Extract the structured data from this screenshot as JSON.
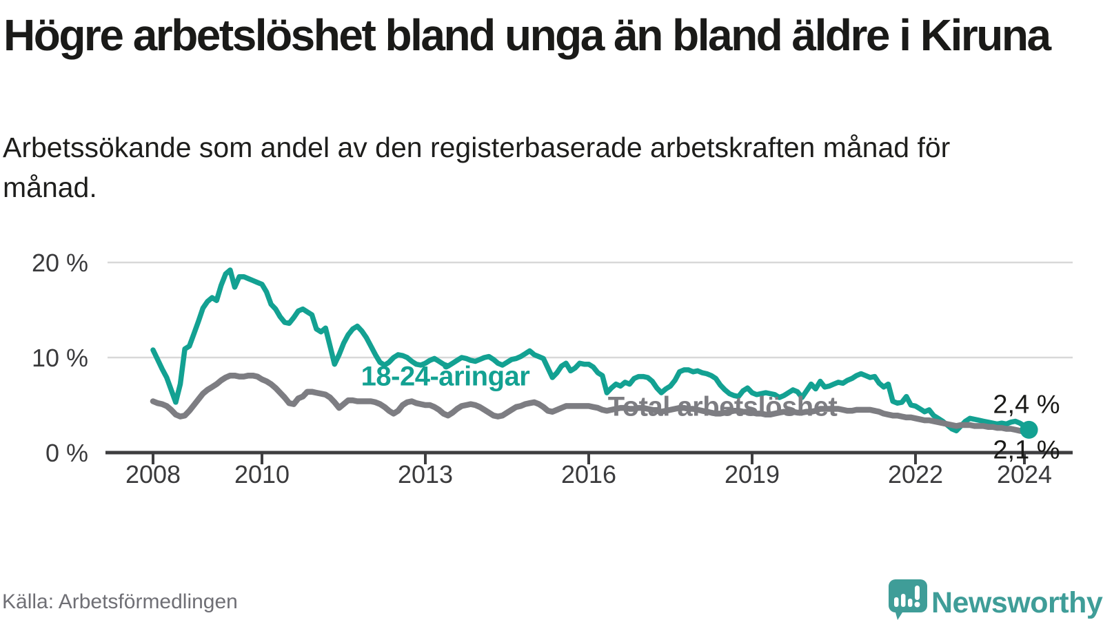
{
  "chart_data": {
    "type": "line",
    "title": "Högre arbetslöshet bland unga än bland äldre i Kiruna",
    "subtitle": "Arbetssökande som andel av den registerbaserade arbetskraften månad för månad.",
    "x_axis": {
      "start": "2008-01",
      "interval": "monthly",
      "ticks": [
        "2008",
        "2010",
        "2013",
        "2016",
        "2019",
        "2022",
        "2024"
      ]
    },
    "y_axis": {
      "unit": "%",
      "range": [
        0,
        21
      ],
      "ticks": [
        {
          "label": "20 %",
          "value": 20
        },
        {
          "label": "10 %",
          "value": 10
        },
        {
          "label": "0 %",
          "value": 0
        }
      ]
    },
    "grid": "horizontal",
    "legend_position": "inline-labels",
    "style": {
      "grid_color": "#D8D8D8",
      "axis_color": "#3E3E40",
      "tick_text_color": "#3A3A3C"
    },
    "series": [
      {
        "name": "18-24-åringar",
        "color": "#13A192",
        "end_label": "2,4 %",
        "end_value": 2.4,
        "values": [
          10.8,
          9.8,
          8.8,
          7.9,
          6.6,
          5.3,
          7.2,
          10.9,
          11.2,
          12.5,
          13.8,
          15.2,
          15.9,
          16.3,
          16.0,
          17.6,
          18.8,
          19.2,
          17.4,
          18.5,
          18.5,
          18.3,
          18.1,
          17.9,
          17.7,
          16.9,
          15.6,
          15.1,
          14.3,
          13.7,
          13.6,
          14.2,
          14.9,
          15.1,
          14.8,
          14.5,
          13.0,
          12.7,
          13.1,
          11.2,
          9.3,
          10.3,
          11.5,
          12.4,
          13.0,
          13.3,
          12.8,
          12.1,
          11.2,
          10.3,
          9.5,
          9.2,
          9.5,
          10.0,
          10.3,
          10.2,
          10.0,
          9.6,
          9.3,
          9.2,
          9.4,
          9.7,
          9.9,
          9.6,
          9.3,
          9.1,
          9.4,
          9.7,
          10.0,
          9.9,
          9.7,
          9.6,
          9.8,
          10.0,
          10.1,
          9.8,
          9.4,
          9.2,
          9.5,
          9.8,
          9.9,
          10.1,
          10.4,
          10.7,
          10.3,
          10.1,
          9.9,
          8.9,
          7.9,
          8.4,
          9.1,
          9.4,
          8.6,
          8.9,
          9.4,
          9.3,
          9.3,
          9.0,
          8.4,
          8.1,
          6.3,
          6.8,
          7.2,
          7.0,
          7.4,
          7.2,
          7.8,
          8.0,
          8.0,
          7.9,
          7.5,
          6.8,
          6.3,
          6.7,
          7.0,
          7.6,
          8.5,
          8.7,
          8.7,
          8.5,
          8.6,
          8.4,
          8.3,
          8.1,
          7.8,
          7.1,
          6.6,
          6.2,
          6.0,
          5.9,
          6.5,
          6.8,
          6.3,
          6.1,
          6.2,
          6.3,
          6.2,
          6.1,
          5.8,
          6.0,
          6.3,
          6.6,
          6.4,
          5.8,
          6.5,
          7.2,
          6.7,
          7.5,
          6.9,
          7.0,
          7.2,
          7.4,
          7.3,
          7.6,
          7.8,
          8.1,
          8.3,
          8.1,
          7.9,
          8.0,
          7.3,
          6.9,
          7.2,
          5.4,
          5.2,
          5.3,
          5.9,
          5.0,
          4.9,
          4.6,
          4.3,
          4.5,
          3.9,
          3.6,
          3.3,
          2.9,
          2.5,
          2.3,
          2.8,
          3.3,
          3.6,
          3.5,
          3.4,
          3.3,
          3.2,
          3.1,
          3.0,
          3.1,
          3.0,
          3.2,
          3.3,
          3.1,
          2.8,
          2.4
        ]
      },
      {
        "name": "Total arbetslöshet",
        "color": "#7D7D82",
        "end_label": "2,1 %",
        "end_value": 2.1,
        "values": [
          5.4,
          5.2,
          5.1,
          4.9,
          4.5,
          4.0,
          3.8,
          3.9,
          4.4,
          5.0,
          5.6,
          6.2,
          6.6,
          6.9,
          7.2,
          7.6,
          7.9,
          8.1,
          8.1,
          8.0,
          8.0,
          8.1,
          8.1,
          8.0,
          7.7,
          7.5,
          7.2,
          6.8,
          6.3,
          5.8,
          5.2,
          5.1,
          5.7,
          5.9,
          6.4,
          6.4,
          6.3,
          6.2,
          6.1,
          5.8,
          5.3,
          4.7,
          5.1,
          5.5,
          5.5,
          5.4,
          5.4,
          5.4,
          5.4,
          5.3,
          5.1,
          4.8,
          4.4,
          4.1,
          4.4,
          5.0,
          5.3,
          5.4,
          5.2,
          5.1,
          5.0,
          5.0,
          4.8,
          4.5,
          4.1,
          3.9,
          4.2,
          4.6,
          4.9,
          5.0,
          5.1,
          5.0,
          4.8,
          4.5,
          4.2,
          3.9,
          3.8,
          3.9,
          4.2,
          4.5,
          4.8,
          4.9,
          5.1,
          5.2,
          5.3,
          5.1,
          4.8,
          4.4,
          4.3,
          4.5,
          4.7,
          4.9,
          4.9,
          4.9,
          4.9,
          4.9,
          4.9,
          4.8,
          4.7,
          4.5,
          4.4,
          4.5,
          4.6,
          4.7,
          4.7,
          4.6,
          4.6,
          4.7,
          4.7,
          4.6,
          4.5,
          4.4,
          4.3,
          4.4,
          4.5,
          4.6,
          4.7,
          4.7,
          4.6,
          4.6,
          4.5,
          4.4,
          4.3,
          4.2,
          4.1,
          4.1,
          4.2,
          4.3,
          4.4,
          4.4,
          4.3,
          4.3,
          4.2,
          4.1,
          4.1,
          4.0,
          4.0,
          4.1,
          4.2,
          4.3,
          4.3,
          4.3,
          4.2,
          4.2,
          4.3,
          4.3,
          4.4,
          4.6,
          4.6,
          4.6,
          4.6,
          4.6,
          4.5,
          4.4,
          4.4,
          4.5,
          4.5,
          4.5,
          4.5,
          4.4,
          4.3,
          4.1,
          4.0,
          3.9,
          3.9,
          3.8,
          3.7,
          3.7,
          3.6,
          3.5,
          3.4,
          3.4,
          3.3,
          3.2,
          3.1,
          3.0,
          2.9,
          2.8,
          2.9,
          2.9,
          2.9,
          2.8,
          2.8,
          2.8,
          2.7,
          2.7,
          2.6,
          2.6,
          2.5,
          2.5,
          2.4,
          2.3,
          2.2,
          2.1
        ]
      }
    ]
  },
  "footer": {
    "source_label": "Källa: Arbetsförmedlingen",
    "brand_name": "Newsworthy",
    "brand_color": "#3F9D98"
  }
}
